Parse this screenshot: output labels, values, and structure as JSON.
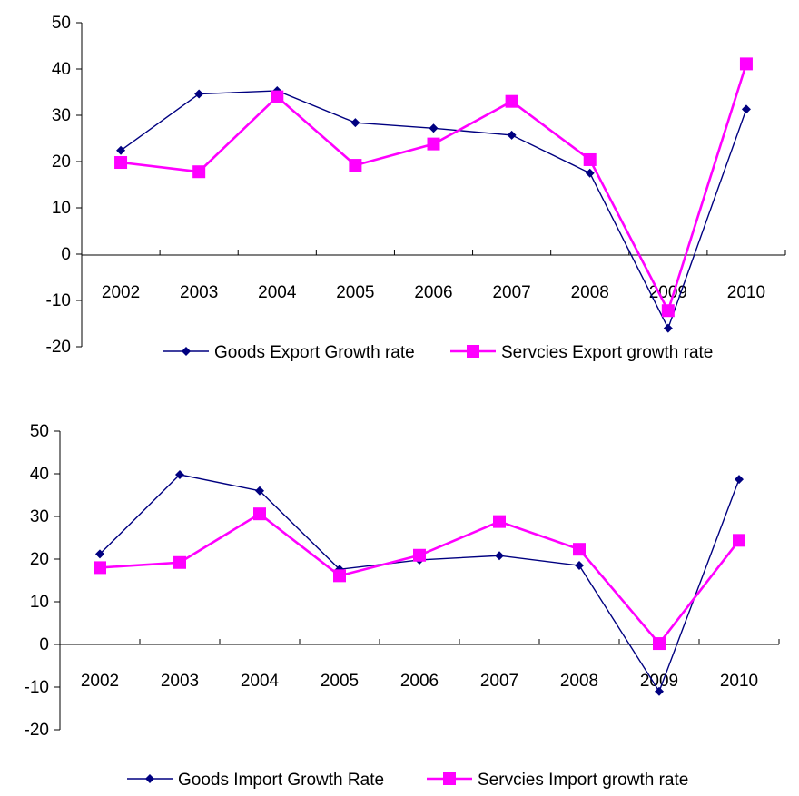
{
  "chart_data": [
    {
      "type": "line",
      "title": "",
      "xlabel": "",
      "ylabel": "",
      "categories": [
        "2002",
        "2003",
        "2004",
        "2005",
        "2006",
        "2007",
        "2008",
        "2009",
        "2010"
      ],
      "ylim": [
        -20,
        50
      ],
      "yticks": [
        "50",
        "40",
        "30",
        "20",
        "10",
        "0",
        "-10",
        "-20"
      ],
      "grid": false,
      "legend_position": "bottom",
      "series": [
        {
          "name": "Goods Export Growth rate",
          "color": "#000080",
          "marker": "diamond",
          "values": [
            22.4,
            34.6,
            35.3,
            28.4,
            27.2,
            25.7,
            17.5,
            -16.0,
            31.3
          ]
        },
        {
          "name": "Servcies Export growth rate",
          "color": "#ff00ff",
          "marker": "square",
          "values": [
            19.8,
            17.8,
            34.0,
            19.2,
            23.8,
            33.0,
            20.4,
            -12.2,
            41.1
          ]
        }
      ]
    },
    {
      "type": "line",
      "title": "",
      "xlabel": "",
      "ylabel": "",
      "categories": [
        "2002",
        "2003",
        "2004",
        "2005",
        "2006",
        "2007",
        "2008",
        "2009",
        "2010"
      ],
      "ylim": [
        -20,
        50
      ],
      "yticks": [
        "50",
        "40",
        "30",
        "20",
        "10",
        "0",
        "-10",
        "-20"
      ],
      "grid": false,
      "legend_position": "bottom",
      "series": [
        {
          "name": "Goods Import Growth Rate",
          "color": "#000080",
          "marker": "diamond",
          "values": [
            21.2,
            39.8,
            36.0,
            17.6,
            19.8,
            20.8,
            18.5,
            -11.0,
            38.7
          ]
        },
        {
          "name": "Servcies Import growth rate",
          "color": "#ff00ff",
          "marker": "square",
          "values": [
            18.0,
            19.2,
            30.6,
            16.1,
            20.9,
            28.8,
            22.3,
            0.2,
            24.4
          ]
        }
      ]
    }
  ]
}
